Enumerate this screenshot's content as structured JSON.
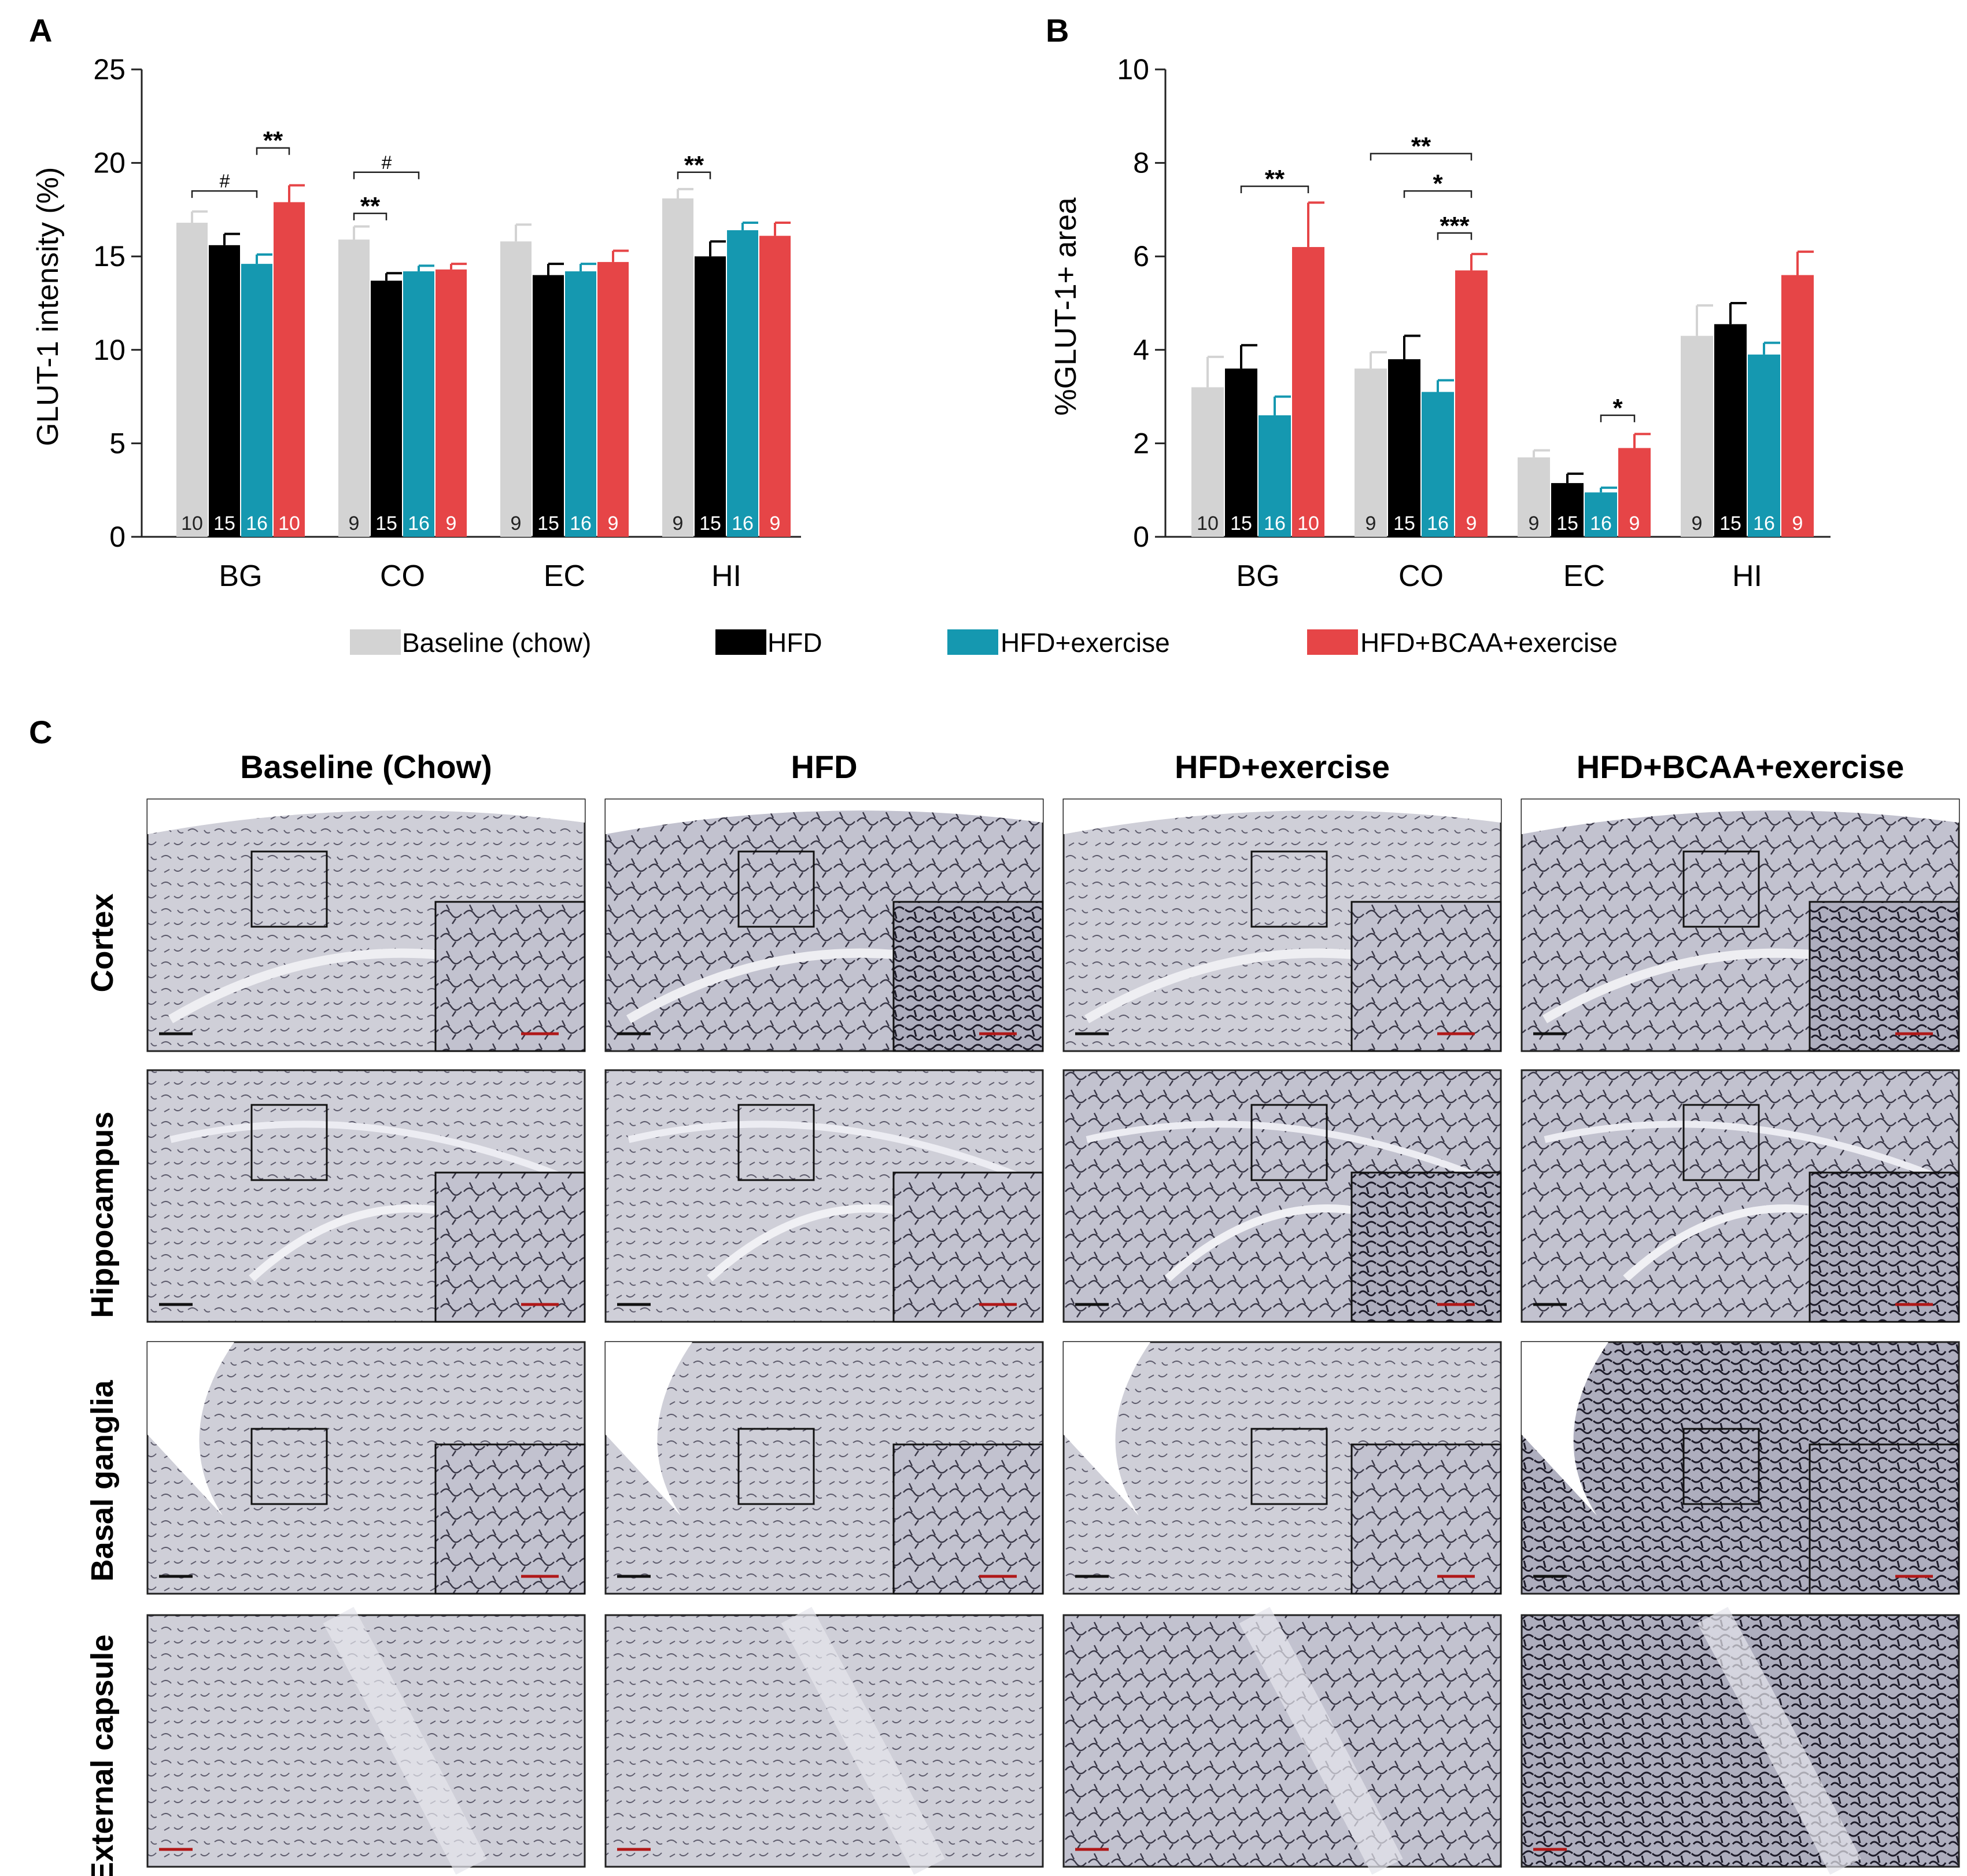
{
  "figure": {
    "legend": [
      {
        "name": "Baseline (chow)",
        "color": "#d3d3d3"
      },
      {
        "name": "HFD",
        "color": "#000000"
      },
      {
        "name": "HFD+exercise",
        "color": "#1598b0"
      },
      {
        "name": "HFD+BCAA+exercise",
        "color": "#e64547"
      }
    ],
    "panelC": {
      "letter": "C",
      "columns": [
        "Baseline (Chow)",
        "HFD",
        "HFD+exercise",
        "HFD+BCAA+exercise"
      ],
      "rows": [
        "Cortex",
        "Hippocampus",
        "Basal ganglia",
        "External capsule"
      ]
    }
  },
  "chart_data": [
    {
      "panel": "A",
      "type": "bar",
      "title": "",
      "xlabel": "",
      "ylabel": "GLUT-1 intensity (%)",
      "ylim": [
        0,
        25
      ],
      "yticks": [
        0,
        5,
        10,
        15,
        20,
        25
      ],
      "categories": [
        "BG",
        "CO",
        "EC",
        "HI"
      ],
      "series": [
        {
          "name": "Baseline (chow)",
          "color": "#d3d3d3",
          "values": [
            16.8,
            15.9,
            15.8,
            18.1
          ],
          "err": [
            0.6,
            0.7,
            0.9,
            0.5
          ],
          "n": [
            "10",
            "9",
            "9",
            "9"
          ]
        },
        {
          "name": "HFD",
          "color": "#000000",
          "values": [
            15.6,
            13.7,
            14.0,
            15.0
          ],
          "err": [
            0.6,
            0.4,
            0.6,
            0.8
          ],
          "n": [
            "15",
            "15",
            "15",
            "15"
          ]
        },
        {
          "name": "HFD+exercise",
          "color": "#1598b0",
          "values": [
            14.6,
            14.2,
            14.2,
            16.4
          ],
          "err": [
            0.5,
            0.3,
            0.4,
            0.4
          ],
          "n": [
            "16",
            "16",
            "16",
            "16"
          ]
        },
        {
          "name": "HFD+BCAA+exercise",
          "color": "#e64547",
          "values": [
            17.9,
            14.3,
            14.7,
            16.1
          ],
          "err": [
            0.9,
            0.3,
            0.6,
            0.7
          ],
          "n": [
            "10",
            "9",
            "9",
            "9"
          ]
        }
      ],
      "significance": [
        {
          "category": "BG",
          "from": 0,
          "to": 2,
          "level": 18.5,
          "label": "#"
        },
        {
          "category": "BG",
          "from": 2,
          "to": 3,
          "level": 20.8,
          "label": "**"
        },
        {
          "category": "CO",
          "from": 0,
          "to": 2,
          "level": 19.5,
          "label": "#"
        },
        {
          "category": "CO",
          "from": 0,
          "to": 1,
          "level": 17.3,
          "label": "**"
        },
        {
          "category": "HI",
          "from": 0,
          "to": 1,
          "level": 19.5,
          "label": "**"
        }
      ]
    },
    {
      "panel": "B",
      "type": "bar",
      "title": "",
      "xlabel": "",
      "ylabel": "%GLUT-1+ area",
      "ylim": [
        0,
        10
      ],
      "yticks": [
        0,
        2,
        4,
        6,
        8,
        10
      ],
      "categories": [
        "BG",
        "CO",
        "EC",
        "HI"
      ],
      "series": [
        {
          "name": "Baseline (chow)",
          "color": "#d3d3d3",
          "values": [
            3.2,
            3.6,
            1.7,
            4.3
          ],
          "err": [
            0.65,
            0.35,
            0.15,
            0.65
          ],
          "n": [
            "10",
            "9",
            "9",
            "9"
          ]
        },
        {
          "name": "HFD",
          "color": "#000000",
          "values": [
            3.6,
            3.8,
            1.15,
            4.55
          ],
          "err": [
            0.5,
            0.5,
            0.2,
            0.45
          ],
          "n": [
            "15",
            "15",
            "15",
            "15"
          ]
        },
        {
          "name": "HFD+exercise",
          "color": "#1598b0",
          "values": [
            2.6,
            3.1,
            0.95,
            3.9
          ],
          "err": [
            0.4,
            0.25,
            0.1,
            0.25
          ],
          "n": [
            "16",
            "16",
            "16",
            "16"
          ]
        },
        {
          "name": "HFD+BCAA+exercise",
          "color": "#e64547",
          "values": [
            6.2,
            5.7,
            1.9,
            5.6
          ],
          "err": [
            0.95,
            0.35,
            0.3,
            0.5
          ],
          "n": [
            "10",
            "9",
            "9",
            "9"
          ]
        }
      ],
      "significance": [
        {
          "category": "BG",
          "from": 1,
          "to": 3,
          "level": 7.5,
          "label": "**"
        },
        {
          "category": "CO",
          "from": 0,
          "to": 3,
          "level": 8.2,
          "label": "**"
        },
        {
          "category": "CO",
          "from": 1,
          "to": 3,
          "level": 7.4,
          "label": "*"
        },
        {
          "category": "CO",
          "from": 2,
          "to": 3,
          "level": 6.5,
          "label": "***"
        },
        {
          "category": "EC",
          "from": 2,
          "to": 3,
          "level": 2.6,
          "label": "*"
        }
      ]
    }
  ]
}
